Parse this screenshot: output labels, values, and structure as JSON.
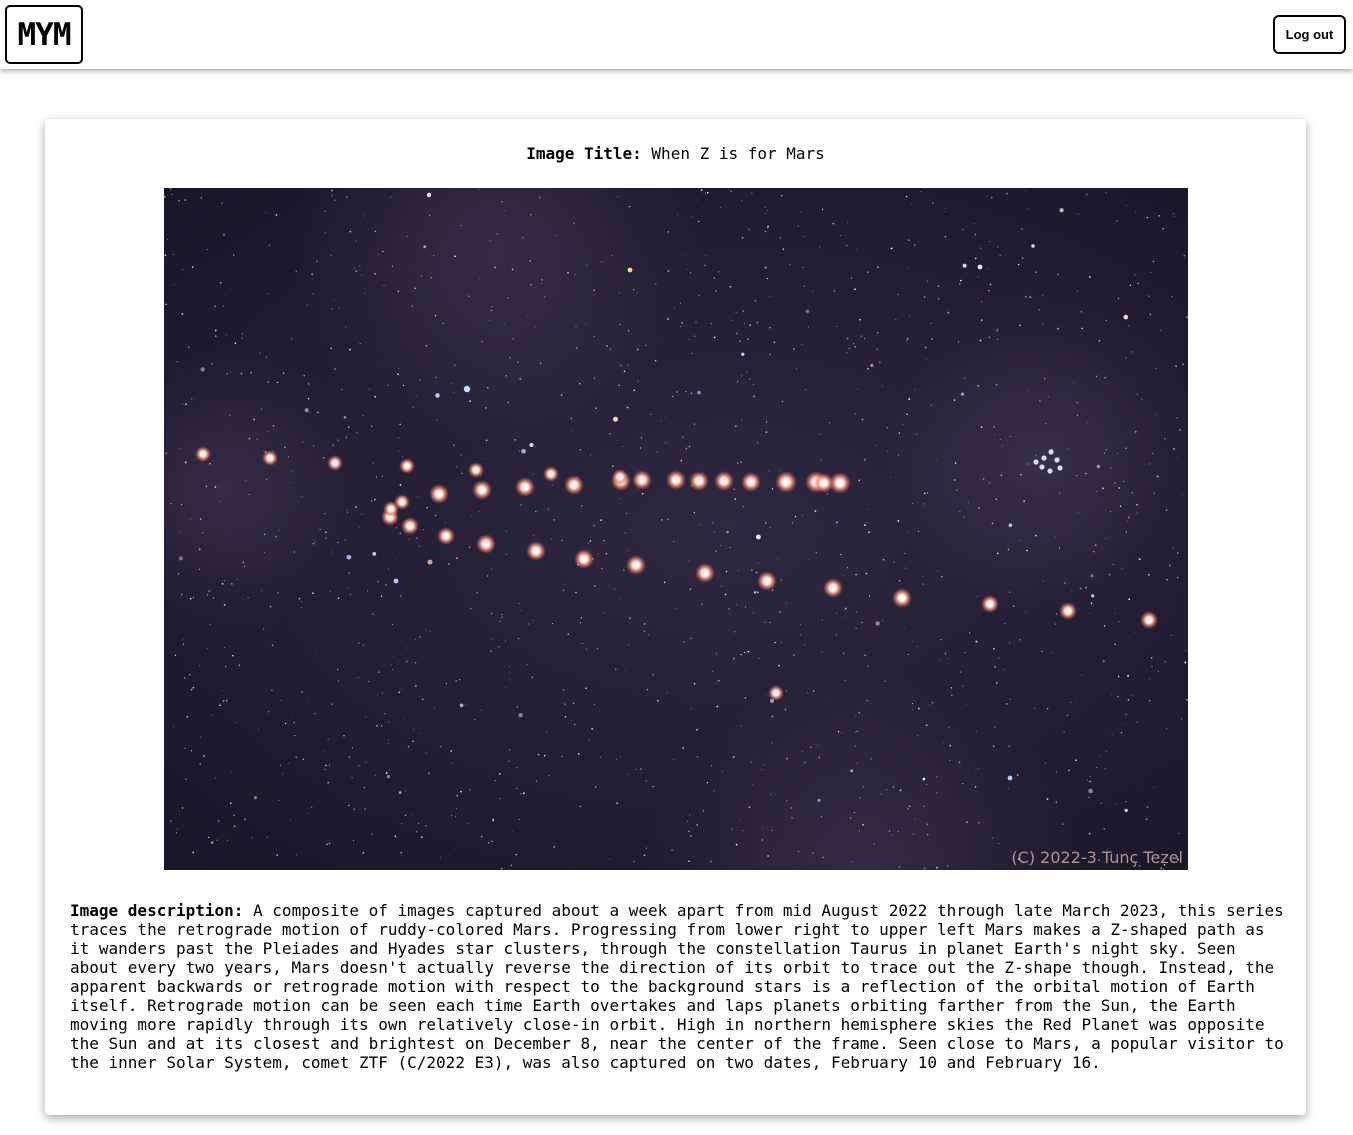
{
  "header": {
    "logo": "MYM",
    "logout_label": "Log out"
  },
  "content": {
    "title_label": "Image Title:",
    "title_value": "When Z is for Mars",
    "photo_watermark": "(C) 2022-3 Tunç Tezel",
    "description_label": "Image description:",
    "description_text": "A composite of images captured about a week apart from mid August 2022 through late March 2023, this series traces the retrograde motion of ruddy-colored Mars. Progressing from lower right to upper left Mars makes a Z-shaped path as it wanders past the Pleiades and Hyades star clusters, through the constellation Taurus in planet Earth's night sky. Seen about every two years, Mars doesn't actually reverse the direction of its orbit to trace out the Z-shape though. Instead, the apparent backwards or retrograde motion with respect to the background stars is a reflection of the orbital motion of Earth itself. Retrograde motion can be seen each time Earth overtakes and laps planets orbiting farther from the Sun, the Earth moving more rapidly through its own relatively close-in orbit. High in northern hemisphere skies the Red Planet was opposite the Sun and at its closest and brightest on December 8, near the center of the frame. Seen close to Mars, a popular visitor to the inner Solar System, comet ZTF (C/2022 E3), was also captured on two dates, February 10 and February 16."
  },
  "colors": {
    "sky": "#221d33",
    "mars": "#ffe9e0",
    "mars_glow": "#e8836e"
  }
}
